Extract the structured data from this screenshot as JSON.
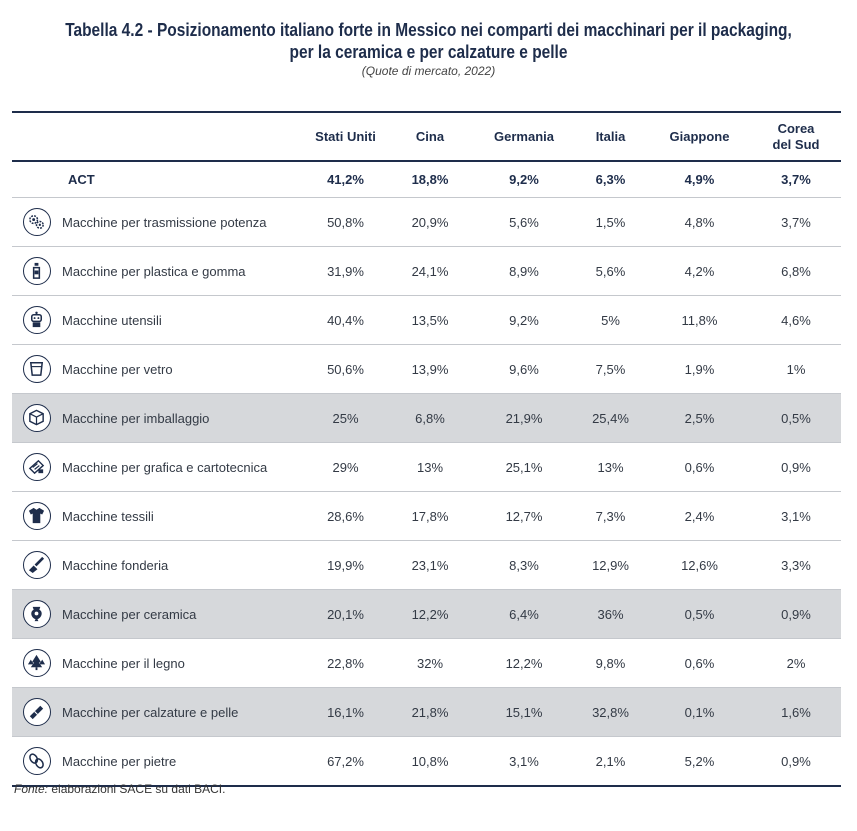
{
  "title_line1": "Tabella 4.2 - Posizionamento italiano forte in Messico nei comparti dei macchinari per il packaging,",
  "title_line2": "per la ceramica e per calzature e pelle",
  "subtitle": "(Quote di mercato, 2022)",
  "columns": [
    "Stati Uniti",
    "Cina",
    "Germania",
    "Italia",
    "Giappone",
    "Corea del Sud"
  ],
  "column_lines": {
    "korea_1": "Corea",
    "korea_2": "del Sud"
  },
  "act": {
    "label": "ACT",
    "values": [
      "41,2%",
      "18,8%",
      "9,2%",
      "6,3%",
      "4,9%",
      "3,7%"
    ]
  },
  "rows": [
    {
      "icon": "gears-icon",
      "label": "Macchine per trasmissione potenza",
      "values": [
        "50,8%",
        "20,9%",
        "5,6%",
        "1,5%",
        "4,8%",
        "3,7%"
      ],
      "shaded": false
    },
    {
      "icon": "bottle-icon",
      "label": "Macchine per plastica e gomma",
      "values": [
        "31,9%",
        "24,1%",
        "8,9%",
        "5,6%",
        "4,2%",
        "6,8%"
      ],
      "shaded": false
    },
    {
      "icon": "robot-icon",
      "label": "Macchine utensili",
      "values": [
        "40,4%",
        "13,5%",
        "9,2%",
        "5%",
        "11,8%",
        "4,6%"
      ],
      "shaded": false
    },
    {
      "icon": "glass-icon",
      "label": "Macchine per vetro",
      "values": [
        "50,6%",
        "13,9%",
        "9,6%",
        "7,5%",
        "1,9%",
        "1%"
      ],
      "shaded": false
    },
    {
      "icon": "box-icon",
      "label": "Macchine per imballaggio",
      "values": [
        "25%",
        "6,8%",
        "21,9%",
        "25,4%",
        "2,5%",
        "0,5%"
      ],
      "shaded": true
    },
    {
      "icon": "printer-icon",
      "label": "Macchine per grafica e cartotecnica",
      "values": [
        "29%",
        "13%",
        "25,1%",
        "13%",
        "0,6%",
        "0,9%"
      ],
      "shaded": false
    },
    {
      "icon": "tshirt-icon",
      "label": "Macchine tessili",
      "values": [
        "28,6%",
        "17,8%",
        "12,7%",
        "7,3%",
        "2,4%",
        "3,1%"
      ],
      "shaded": false
    },
    {
      "icon": "ladle-icon",
      "label": "Macchine fonderia",
      "values": [
        "19,9%",
        "23,1%",
        "8,3%",
        "12,9%",
        "12,6%",
        "3,3%"
      ],
      "shaded": false
    },
    {
      "icon": "vase-icon",
      "label": "Macchine per ceramica",
      "values": [
        "20,1%",
        "12,2%",
        "6,4%",
        "36%",
        "0,5%",
        "0,9%"
      ],
      "shaded": true
    },
    {
      "icon": "trees-icon",
      "label": "Macchine per il legno",
      "values": [
        "22,8%",
        "32%",
        "12,2%",
        "9,8%",
        "0,6%",
        "2%"
      ],
      "shaded": false
    },
    {
      "icon": "shoe-icon",
      "label": "Macchine per calzature e pelle",
      "values": [
        "16,1%",
        "21,8%",
        "15,1%",
        "32,8%",
        "0,1%",
        "1,6%"
      ],
      "shaded": true
    },
    {
      "icon": "stones-icon",
      "label": "Macchine per pietre",
      "values": [
        "67,2%",
        "10,8%",
        "3,1%",
        "2,1%",
        "5,2%",
        "0,9%"
      ],
      "shaded": false
    }
  ],
  "footer": {
    "prefix": "Fonte:",
    "text": " elaborazioni SACE su dati BACI."
  }
}
